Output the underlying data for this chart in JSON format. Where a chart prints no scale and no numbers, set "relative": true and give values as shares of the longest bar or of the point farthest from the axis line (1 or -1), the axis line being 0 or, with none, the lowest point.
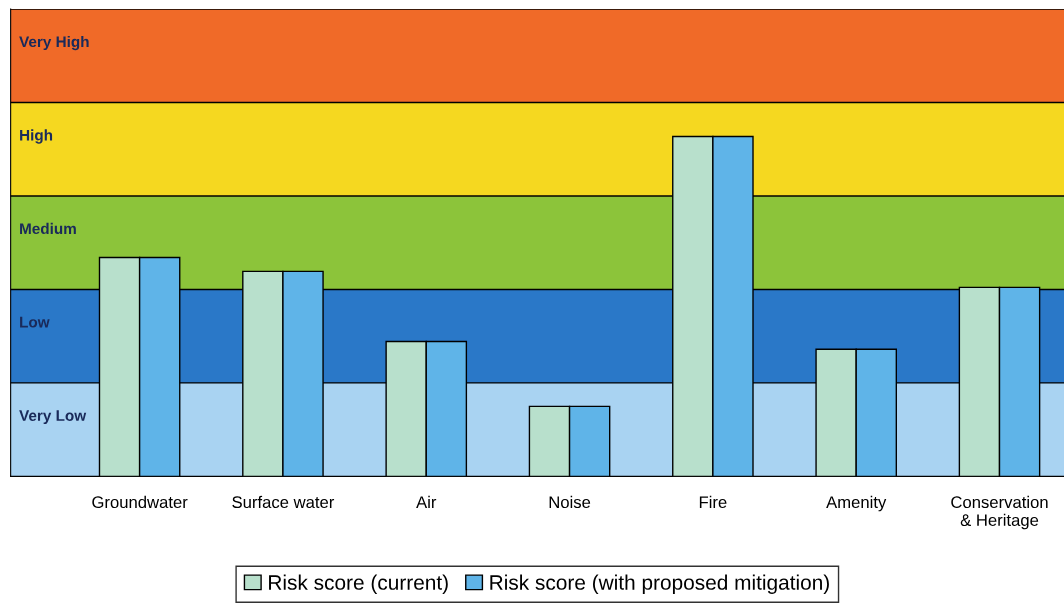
{
  "chart_data": {
    "type": "bar",
    "relative": true,
    "categories": [
      "Groundwater",
      "Surface water",
      "Air",
      "Noise",
      "Fire",
      "Amenity",
      "Conservation\n& Heritage"
    ],
    "series": [
      {
        "name": "Risk score (current)",
        "color": "#b8e0cc",
        "values": [
          0.644,
          0.603,
          0.397,
          0.206,
          1,
          0.374,
          0.556
        ]
      },
      {
        "name": "Risk score (with proposed mitigation)",
        "color": "#5fb4e8",
        "values": [
          0.644,
          0.603,
          0.397,
          0.206,
          1,
          0.374,
          0.556
        ]
      }
    ],
    "bands": [
      {
        "axis": "y",
        "from": 0,
        "to": 0.275,
        "label": "Very Low",
        "color": "#a9d3f2"
      },
      {
        "axis": "y",
        "from": 0.275,
        "to": 0.55,
        "label": "Low",
        "color": "#2a78c8"
      },
      {
        "axis": "y",
        "from": 0.55,
        "to": 0.825,
        "label": "Medium",
        "color": "#8cc43a"
      },
      {
        "axis": "y",
        "from": 0.825,
        "to": 1.1,
        "label": "High",
        "color": "#f5d820"
      },
      {
        "axis": "y",
        "from": 1.1,
        "to": 1.375,
        "label": "Very High",
        "color": "#f06a28"
      }
    ],
    "legend": "bottom",
    "grid": false
  }
}
